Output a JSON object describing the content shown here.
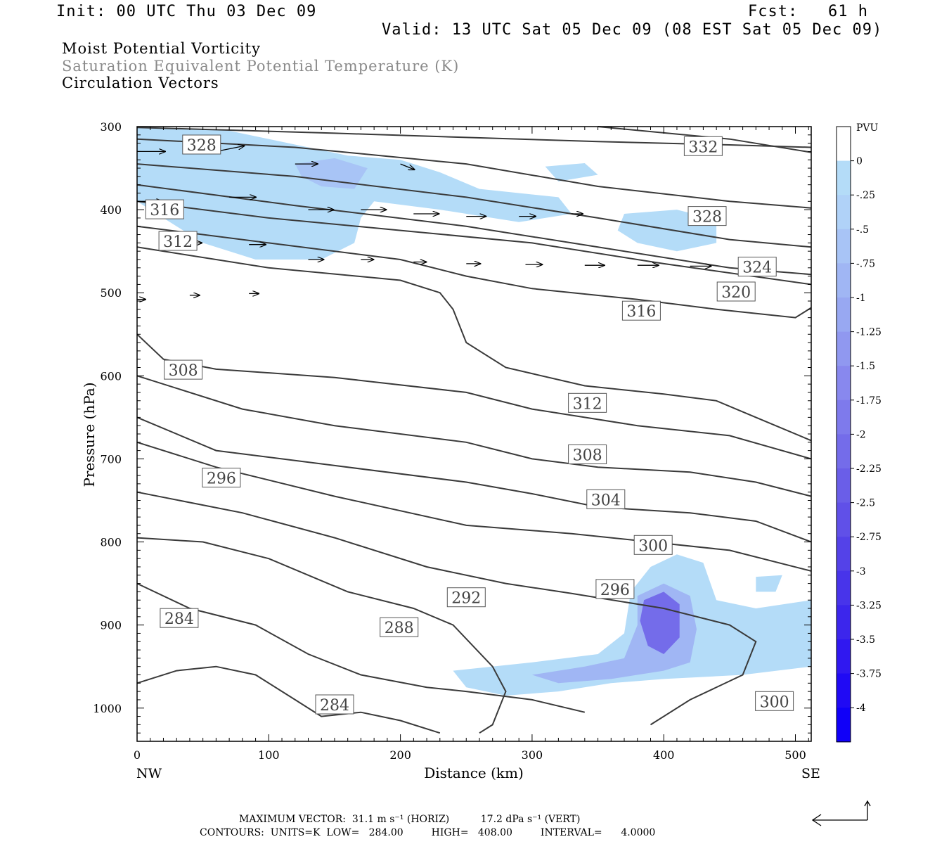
{
  "header": {
    "init": "Init: 00 UTC Thu 03 Dec 09",
    "fcst": "Fcst:   61 h",
    "valid": "Valid: 13 UTC Sat 05 Dec 09 (08 EST Sat 05 Dec 09)"
  },
  "titles": {
    "line1": "Moist Potential Vorticity",
    "line2": "Saturation Equivalent Potential Temperature (K)",
    "line3": "Circulation Vectors"
  },
  "colors": {
    "contour": "#3a3a3a",
    "shade_light": "#b4dcf8",
    "shade_mid": "#9fb4f4",
    "shade_dark": "#7a7ee8"
  },
  "chart_data": {
    "type": "contour",
    "xlabel": "Distance (km)",
    "ylabel": "Pressure (hPa)",
    "x_ticks": [
      "0",
      "100",
      "200",
      "300",
      "400",
      "500"
    ],
    "x_tick_values": [
      0,
      100,
      200,
      300,
      400,
      500
    ],
    "xlim": [
      0,
      512
    ],
    "y_ticks": [
      "300",
      "400",
      "500",
      "600",
      "700",
      "800",
      "900",
      "1000"
    ],
    "y_tick_values": [
      300,
      400,
      500,
      600,
      700,
      800,
      900,
      1000
    ],
    "ylim": [
      300,
      1040
    ],
    "x_end_labels": {
      "left": "NW",
      "right": "SE"
    },
    "colorbar": {
      "title": "PVU",
      "labels": [
        "0",
        "-.25",
        "-.5",
        "-.75",
        "-1",
        "-1.25",
        "-1.5",
        "-1.75",
        "-2",
        "-2.25",
        "-2.5",
        "-2.75",
        "-3",
        "-3.25",
        "-3.5",
        "-3.75",
        "-4"
      ],
      "colors": [
        "#ffffff",
        "#b4dcf8",
        "#b0d2f8",
        "#a8c4f6",
        "#a0b6f4",
        "#98a8f2",
        "#9098f0",
        "#8888ee",
        "#7e7aec",
        "#746cea",
        "#6a5ee8",
        "#6050e8",
        "#5442e8",
        "#4834ea",
        "#3c26ec",
        "#3018f0",
        "#200af4",
        "#1000f8"
      ]
    },
    "contour_labels": [
      {
        "text": "328",
        "x": 49,
        "p": 322
      },
      {
        "text": "332",
        "x": 430,
        "p": 324
      },
      {
        "text": "316",
        "x": 21,
        "p": 400
      },
      {
        "text": "328",
        "x": 433,
        "p": 408
      },
      {
        "text": "312",
        "x": 31,
        "p": 438
      },
      {
        "text": "324",
        "x": 471,
        "p": 469
      },
      {
        "text": "320",
        "x": 455,
        "p": 499
      },
      {
        "text": "316",
        "x": 383,
        "p": 522
      },
      {
        "text": "308",
        "x": 35,
        "p": 593
      },
      {
        "text": "312",
        "x": 342,
        "p": 633
      },
      {
        "text": "308",
        "x": 342,
        "p": 695
      },
      {
        "text": "296",
        "x": 64,
        "p": 723
      },
      {
        "text": "304",
        "x": 356,
        "p": 749
      },
      {
        "text": "300",
        "x": 392,
        "p": 804
      },
      {
        "text": "296",
        "x": 363,
        "p": 857
      },
      {
        "text": "292",
        "x": 250,
        "p": 867
      },
      {
        "text": "284",
        "x": 32,
        "p": 892
      },
      {
        "text": "288",
        "x": 199,
        "p": 903
      },
      {
        "text": "300",
        "x": 484,
        "p": 992
      },
      {
        "text": "284",
        "x": 150,
        "p": 996
      }
    ],
    "contour_lines": [
      [
        [
          0,
          301
        ],
        [
          150,
          308
        ],
        [
          250,
          313
        ],
        [
          350,
          318
        ],
        [
          450,
          322
        ],
        [
          512,
          325
        ]
      ],
      [
        [
          350,
          300
        ],
        [
          450,
          315
        ],
        [
          512,
          331
        ]
      ],
      [
        [
          0,
          315
        ],
        [
          120,
          325
        ],
        [
          250,
          345
        ],
        [
          350,
          372
        ],
        [
          450,
          390
        ],
        [
          512,
          398
        ]
      ],
      [
        [
          0,
          345
        ],
        [
          120,
          360
        ],
        [
          250,
          385
        ],
        [
          350,
          410
        ],
        [
          450,
          436
        ],
        [
          512,
          445
        ]
      ],
      [
        [
          0,
          370
        ],
        [
          120,
          395
        ],
        [
          250,
          420
        ],
        [
          350,
          445
        ],
        [
          450,
          470
        ],
        [
          512,
          478
        ]
      ],
      [
        [
          0,
          390
        ],
        [
          100,
          410
        ],
        [
          200,
          425
        ],
        [
          300,
          440
        ],
        [
          400,
          465
        ],
        [
          512,
          490
        ]
      ],
      [
        [
          0,
          420
        ],
        [
          100,
          440
        ],
        [
          200,
          460
        ],
        [
          250,
          480
        ],
        [
          300,
          495
        ],
        [
          380,
          508
        ],
        [
          440,
          520
        ],
        [
          500,
          530
        ],
        [
          512,
          518
        ]
      ],
      [
        [
          0,
          445
        ],
        [
          100,
          470
        ],
        [
          200,
          485
        ],
        [
          230,
          500
        ],
        [
          240,
          520
        ],
        [
          250,
          560
        ],
        [
          280,
          590
        ],
        [
          340,
          612
        ],
        [
          400,
          622
        ],
        [
          440,
          630
        ],
        [
          470,
          650
        ],
        [
          512,
          678
        ]
      ],
      [
        [
          0,
          550
        ],
        [
          20,
          580
        ],
        [
          60,
          592
        ],
        [
          150,
          602
        ],
        [
          250,
          620
        ],
        [
          300,
          640
        ],
        [
          340,
          650
        ],
        [
          380,
          660
        ],
        [
          450,
          672
        ],
        [
          512,
          700
        ]
      ],
      [
        [
          0,
          600
        ],
        [
          80,
          640
        ],
        [
          150,
          660
        ],
        [
          250,
          680
        ],
        [
          300,
          700
        ],
        [
          350,
          710
        ],
        [
          420,
          716
        ],
        [
          470,
          728
        ],
        [
          512,
          745
        ]
      ],
      [
        [
          0,
          650
        ],
        [
          60,
          690
        ],
        [
          150,
          708
        ],
        [
          250,
          728
        ],
        [
          300,
          742
        ],
        [
          350,
          758
        ],
        [
          420,
          765
        ],
        [
          470,
          775
        ],
        [
          512,
          800
        ]
      ],
      [
        [
          0,
          680
        ],
        [
          60,
          710
        ],
        [
          150,
          745
        ],
        [
          250,
          780
        ],
        [
          330,
          790
        ],
        [
          390,
          800
        ],
        [
          450,
          810
        ],
        [
          512,
          835
        ]
      ],
      [
        [
          0,
          740
        ],
        [
          80,
          765
        ],
        [
          150,
          795
        ],
        [
          220,
          830
        ],
        [
          280,
          850
        ],
        [
          330,
          862
        ],
        [
          400,
          880
        ],
        [
          450,
          900
        ],
        [
          470,
          920
        ],
        [
          460,
          960
        ],
        [
          420,
          990
        ],
        [
          390,
          1020
        ]
      ],
      [
        [
          0,
          795
        ],
        [
          50,
          800
        ],
        [
          100,
          820
        ],
        [
          160,
          860
        ],
        [
          210,
          880
        ],
        [
          240,
          900
        ],
        [
          270,
          950
        ],
        [
          280,
          980
        ],
        [
          270,
          1020
        ],
        [
          260,
          1030
        ]
      ],
      [
        [
          0,
          850
        ],
        [
          40,
          880
        ],
        [
          90,
          900
        ],
        [
          130,
          935
        ],
        [
          170,
          960
        ],
        [
          220,
          975
        ],
        [
          250,
          980
        ],
        [
          300,
          990
        ],
        [
          340,
          1005
        ]
      ],
      [
        [
          0,
          970
        ],
        [
          30,
          955
        ],
        [
          60,
          950
        ],
        [
          90,
          960
        ],
        [
          120,
          990
        ],
        [
          140,
          1010
        ],
        [
          170,
          1005
        ],
        [
          200,
          1015
        ],
        [
          230,
          1030
        ]
      ]
    ],
    "shaded_regions": [
      {
        "min_pv": -0.25,
        "points": [
          [
            0,
            300
          ],
          [
            70,
            305
          ],
          [
            130,
            325
          ],
          [
            160,
            335
          ],
          [
            200,
            340
          ],
          [
            230,
            355
          ],
          [
            260,
            375
          ],
          [
            320,
            385
          ],
          [
            330,
            405
          ],
          [
            290,
            415
          ],
          [
            230,
            400
          ],
          [
            180,
            390
          ],
          [
            170,
            410
          ],
          [
            165,
            440
          ],
          [
            140,
            460
          ],
          [
            90,
            460
          ],
          [
            50,
            440
          ],
          [
            30,
            420
          ],
          [
            10,
            400
          ],
          [
            0,
            390
          ]
        ]
      },
      {
        "min_pv": -0.75,
        "points": [
          [
            120,
            345
          ],
          [
            150,
            338
          ],
          [
            175,
            350
          ],
          [
            165,
            375
          ],
          [
            140,
            372
          ],
          [
            125,
            360
          ]
        ]
      },
      {
        "min_pv": -0.25,
        "points": [
          [
            370,
            405
          ],
          [
            410,
            400
          ],
          [
            440,
            412
          ],
          [
            440,
            440
          ],
          [
            410,
            450
          ],
          [
            380,
            440
          ],
          [
            365,
            425
          ]
        ]
      },
      {
        "min_pv": -0.25,
        "points": [
          [
            310,
            348
          ],
          [
            340,
            344
          ],
          [
            350,
            358
          ],
          [
            320,
            366
          ]
        ]
      },
      {
        "min_pv": -0.25,
        "points": [
          [
            240,
            955
          ],
          [
            300,
            945
          ],
          [
            350,
            935
          ],
          [
            370,
            910
          ],
          [
            375,
            860
          ],
          [
            390,
            830
          ],
          [
            410,
            815
          ],
          [
            430,
            825
          ],
          [
            440,
            870
          ],
          [
            470,
            880
          ],
          [
            512,
            870
          ],
          [
            512,
            950
          ],
          [
            460,
            960
          ],
          [
            400,
            965
          ],
          [
            360,
            970
          ],
          [
            320,
            980
          ],
          [
            280,
            985
          ],
          [
            250,
            975
          ]
        ]
      },
      {
        "min_pv": -1.0,
        "points": [
          [
            300,
            960
          ],
          [
            340,
            950
          ],
          [
            370,
            940
          ],
          [
            380,
            900
          ],
          [
            380,
            865
          ],
          [
            400,
            850
          ],
          [
            420,
            865
          ],
          [
            425,
            905
          ],
          [
            420,
            945
          ],
          [
            400,
            955
          ],
          [
            360,
            965
          ],
          [
            320,
            970
          ]
        ]
      },
      {
        "min_pv": -2.25,
        "points": [
          [
            385,
            870
          ],
          [
            400,
            860
          ],
          [
            412,
            875
          ],
          [
            412,
            915
          ],
          [
            400,
            935
          ],
          [
            388,
            925
          ],
          [
            382,
            895
          ]
        ]
      },
      {
        "min_pv": -0.25,
        "points": [
          [
            470,
            842
          ],
          [
            490,
            840
          ],
          [
            485,
            860
          ],
          [
            470,
            860
          ]
        ]
      }
    ],
    "vectors": [
      {
        "x": 0,
        "p": 330,
        "u": 1.0,
        "w": 0.0
      },
      {
        "x": 60,
        "p": 330,
        "u": 1.0,
        "w": 0.01
      },
      {
        "x": 120,
        "p": 345,
        "u": 0.8,
        "w": 0.0
      },
      {
        "x": 200,
        "p": 345,
        "u": 0.5,
        "w": -0.01
      },
      {
        "x": 0,
        "p": 390,
        "u": 0.9,
        "w": 0.0
      },
      {
        "x": 70,
        "p": 385,
        "u": 0.95,
        "w": 0.0
      },
      {
        "x": 130,
        "p": 400,
        "u": 0.9,
        "w": 0.0
      },
      {
        "x": 170,
        "p": 400,
        "u": 0.9,
        "w": 0.0
      },
      {
        "x": 210,
        "p": 405,
        "u": 0.9,
        "w": 0.0
      },
      {
        "x": 250,
        "p": 408,
        "u": 0.7,
        "w": 0.0
      },
      {
        "x": 290,
        "p": 408,
        "u": 0.6,
        "w": 0.0
      },
      {
        "x": 330,
        "p": 405,
        "u": 0.4,
        "w": 0.0
      },
      {
        "x": 30,
        "p": 440,
        "u": 0.9,
        "w": 0.0
      },
      {
        "x": 85,
        "p": 442,
        "u": 0.6,
        "w": 0.0
      },
      {
        "x": 130,
        "p": 460,
        "u": 0.55,
        "w": 0.0
      },
      {
        "x": 170,
        "p": 460,
        "u": 0.45,
        "w": 0.0
      },
      {
        "x": 210,
        "p": 463,
        "u": 0.45,
        "w": 0.0
      },
      {
        "x": 250,
        "p": 465,
        "u": 0.5,
        "w": 0.0
      },
      {
        "x": 295,
        "p": 466,
        "u": 0.6,
        "w": 0.0
      },
      {
        "x": 340,
        "p": 467,
        "u": 0.7,
        "w": 0.0
      },
      {
        "x": 380,
        "p": 467,
        "u": 0.75,
        "w": 0.0
      },
      {
        "x": 420,
        "p": 468,
        "u": 0.75,
        "w": 0.0
      },
      {
        "x": 460,
        "p": 466,
        "u": 0.8,
        "w": 0.0
      },
      {
        "x": 0,
        "p": 508,
        "u": 0.3,
        "w": 0.0
      },
      {
        "x": 40,
        "p": 503,
        "u": 0.35,
        "w": 0.0
      },
      {
        "x": 85,
        "p": 501,
        "u": 0.35,
        "w": 0.0
      }
    ]
  },
  "footer": {
    "max_vector": "MAXIMUM VECTOR:  31.1 m s⁻¹ (HORIZ)          17.2 dPa s⁻¹ (VERT)",
    "contours": "CONTOURS:  UNITS=K  LOW=   284.00         HIGH=   408.00         INTERVAL=      4.0000"
  }
}
